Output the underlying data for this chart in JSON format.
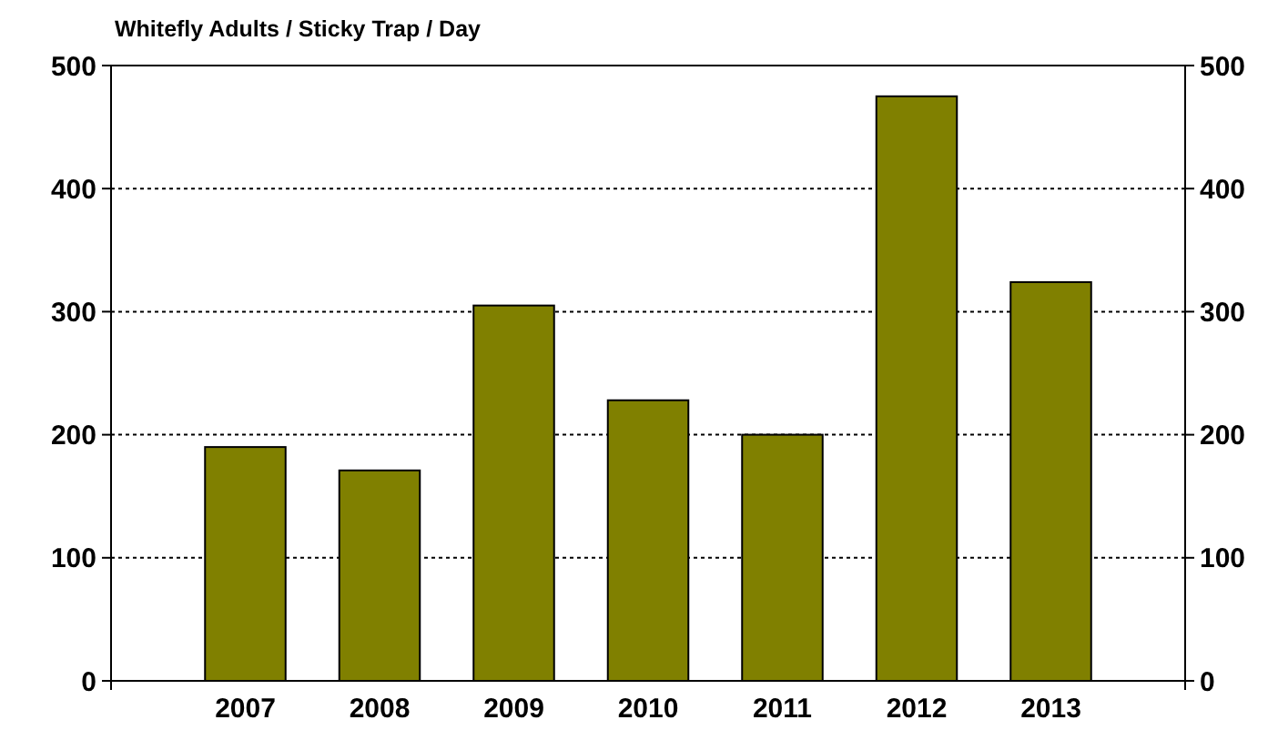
{
  "chart_data": {
    "type": "bar",
    "title": "Whitefly Adults / Sticky Trap / Day",
    "categories": [
      "2007",
      "2008",
      "2009",
      "2010",
      "2011",
      "2012",
      "2013"
    ],
    "values": [
      190,
      171,
      305,
      228,
      200,
      475,
      324
    ],
    "color": "#808000",
    "ylim": [
      0,
      500
    ],
    "yticks": [
      0,
      100,
      200,
      300,
      400,
      500
    ],
    "y2lim": [
      0,
      500
    ],
    "y2ticks": [
      0,
      100,
      200,
      300,
      400,
      500
    ],
    "grid": "y"
  }
}
